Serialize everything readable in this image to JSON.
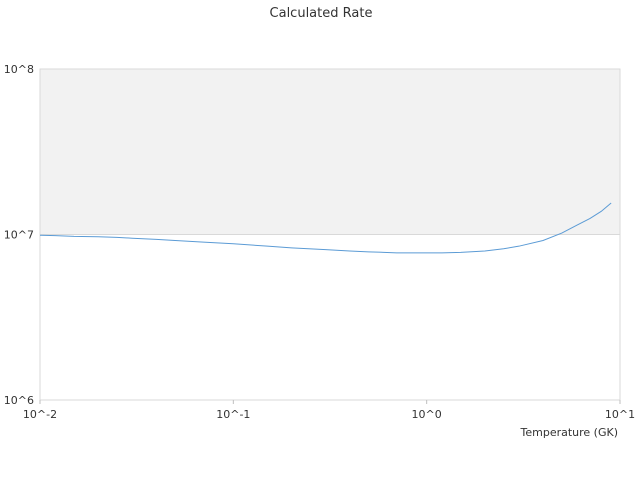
{
  "chart_data": {
    "type": "line",
    "title": "Calculated Rate",
    "xlabel": "Temperature (GK)",
    "ylabel": "",
    "xscale": "log",
    "yscale": "log",
    "xlim": [
      0.01,
      10
    ],
    "ylim": [
      1000000,
      100000000
    ],
    "x_ticks": [
      {
        "value": 0.01,
        "label": "10^-2"
      },
      {
        "value": 0.1,
        "label": "10^-1"
      },
      {
        "value": 1,
        "label": "10^0"
      },
      {
        "value": 10,
        "label": "10^1"
      }
    ],
    "y_ticks": [
      {
        "value": 1000000,
        "label": "10^6"
      },
      {
        "value": 10000000,
        "label": "10^7"
      },
      {
        "value": 100000000,
        "label": "10^8"
      }
    ],
    "grid": true,
    "shaded_band": [
      10000000,
      100000000
    ],
    "colors": {
      "line": "#5b9bd5",
      "band": "#f2f2f2",
      "grid": "#d9d9d9"
    },
    "series": [
      {
        "values": [
          [
            0.01,
            9900000.0
          ],
          [
            0.012,
            9850000.0
          ],
          [
            0.015,
            9750000.0
          ],
          [
            0.02,
            9700000.0
          ],
          [
            0.025,
            9600000.0
          ],
          [
            0.03,
            9500000.0
          ],
          [
            0.04,
            9350000.0
          ],
          [
            0.05,
            9200000.0
          ],
          [
            0.07,
            9000000.0
          ],
          [
            0.1,
            8800000.0
          ],
          [
            0.15,
            8500000.0
          ],
          [
            0.2,
            8300000.0
          ],
          [
            0.3,
            8100000.0
          ],
          [
            0.4,
            7950000.0
          ],
          [
            0.5,
            7850000.0
          ],
          [
            0.6,
            7800000.0
          ],
          [
            0.7,
            7750000.0
          ],
          [
            0.8,
            7750000.0
          ],
          [
            1.0,
            7750000.0
          ],
          [
            1.2,
            7750000.0
          ],
          [
            1.5,
            7800000.0
          ],
          [
            2.0,
            7950000.0
          ],
          [
            2.5,
            8200000.0
          ],
          [
            3.0,
            8500000.0
          ],
          [
            4.0,
            9200000.0
          ],
          [
            5.0,
            10200000.0
          ],
          [
            6.0,
            11400000.0
          ],
          [
            7.0,
            12500000.0
          ],
          [
            8.0,
            13800000.0
          ],
          [
            9.0,
            15500000.0
          ]
        ]
      }
    ]
  }
}
